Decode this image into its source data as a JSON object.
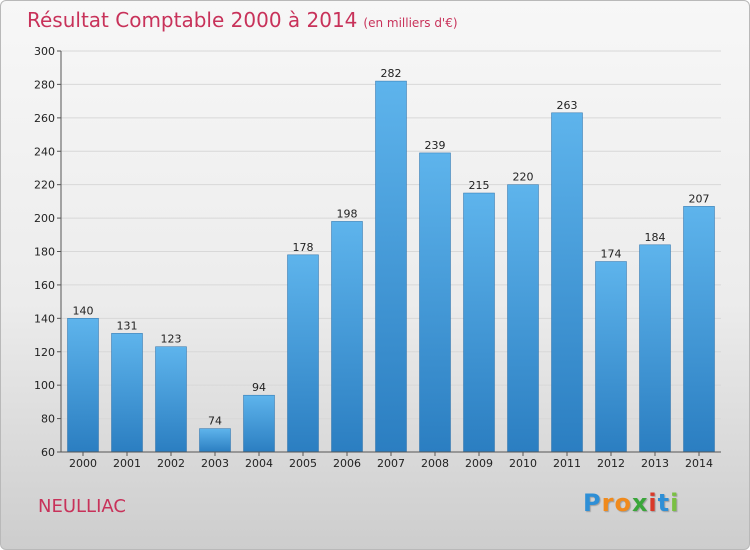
{
  "header": {
    "title": "Résultat Comptable 2000 à 2014",
    "unit": "(en milliers d'€)"
  },
  "footer": {
    "commune": "NEULLIAC",
    "logo_letters": [
      "P",
      "r",
      "o",
      "x",
      "i",
      "t",
      "i"
    ],
    "logo_colors": [
      "#2e8fd6",
      "#f08a1c",
      "#f08a1c",
      "#3aa63a",
      "#d93a2a",
      "#2e8fd6",
      "#7ac043"
    ]
  },
  "colors": {
    "bar_light": "#5eb4ec",
    "bar_dark": "#2b7ec1",
    "title": "#c8325a",
    "grid": "#d8d8d8"
  },
  "chart_data": {
    "type": "bar",
    "title": "Résultat Comptable 2000 à 2014",
    "subtitle": "(en milliers d'€)",
    "xlabel": "",
    "ylabel": "",
    "categories": [
      "2000",
      "2001",
      "2002",
      "2003",
      "2004",
      "2005",
      "2006",
      "2007",
      "2008",
      "2009",
      "2010",
      "2011",
      "2012",
      "2013",
      "2014"
    ],
    "values": [
      140,
      131,
      123,
      74,
      94,
      178,
      198,
      282,
      239,
      215,
      220,
      263,
      174,
      184,
      207
    ],
    "ylim": [
      60,
      300
    ],
    "yticks": [
      60,
      80,
      100,
      120,
      140,
      160,
      180,
      200,
      220,
      240,
      260,
      280,
      300
    ],
    "grid": true,
    "legend": "none"
  }
}
